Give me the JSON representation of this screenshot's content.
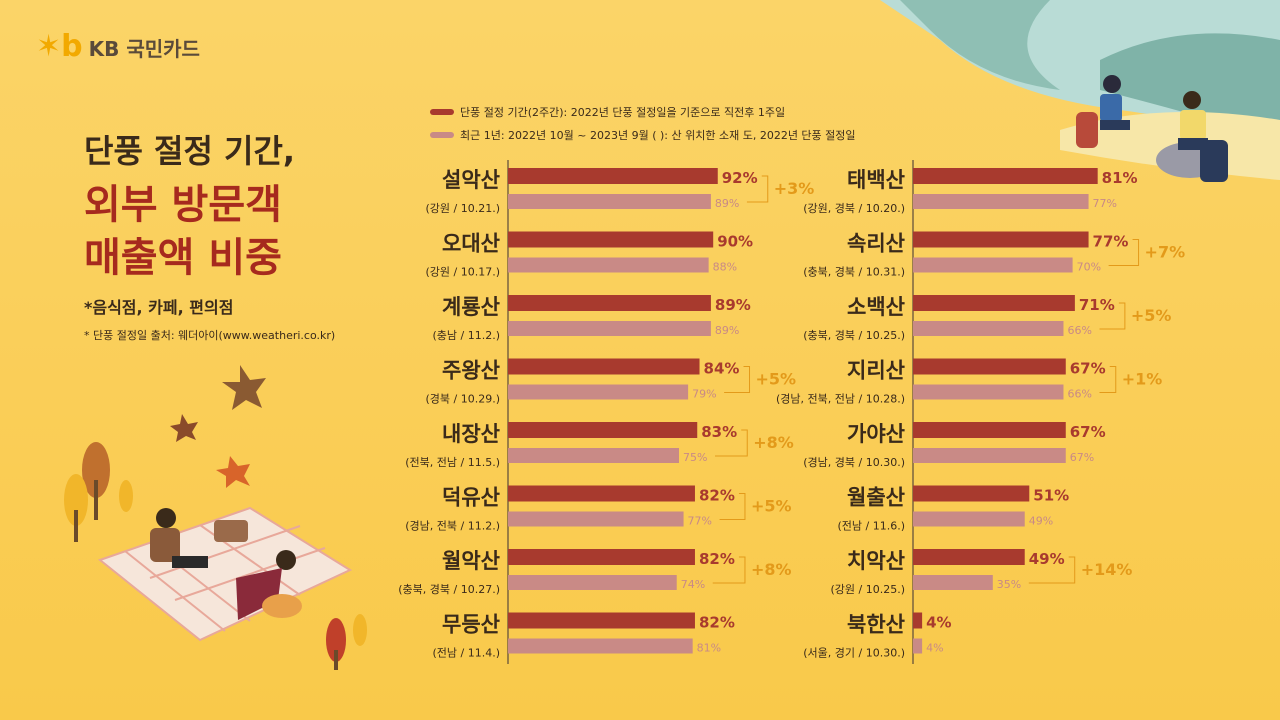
{
  "logo": {
    "mark": "✶b",
    "text": "KB 국민카드"
  },
  "title": {
    "line1": "단풍 절정 기간,",
    "line2": "외부 방문객",
    "line3": "매출액 비중"
  },
  "subtitle": "*음식점, 카페, 편의점",
  "source": "* 단풍 절정일 출처: 웨더아이(www.weatheri.co.kr)",
  "colors": {
    "peak": "#a83a2e",
    "recent": "#c98a86",
    "diff": "#e39a1a",
    "title_accent": "#a62a1e"
  },
  "chart_data": {
    "type": "bar",
    "legend": [
      {
        "label": "단풍 절정 기간(2주간): 2022년 단풍 절정일을 기준으로 직전후 1주일",
        "color": "#a83a2e"
      },
      {
        "label": "최근 1년: 2022년 10월 ~ 2023년 9월    (    ): 산 위치한 소재 도, 2022년 단풍 절정일",
        "color": "#c98a86"
      }
    ],
    "xlim": [
      0,
      100
    ],
    "columns": [
      [
        {
          "name": "설악산",
          "sub": "(강원 / 10.21.)",
          "peak": 92,
          "recent": 89,
          "diff": "+3%"
        },
        {
          "name": "오대산",
          "sub": "(강원 / 10.17.)",
          "peak": 90,
          "recent": 88,
          "diff": ""
        },
        {
          "name": "계룡산",
          "sub": "(충남 / 11.2.)",
          "peak": 89,
          "recent": 89,
          "diff": ""
        },
        {
          "name": "주왕산",
          "sub": "(경북 / 10.29.)",
          "peak": 84,
          "recent": 79,
          "diff": "+5%"
        },
        {
          "name": "내장산",
          "sub": "(전북, 전남 / 11.5.)",
          "peak": 83,
          "recent": 75,
          "diff": "+8%"
        },
        {
          "name": "덕유산",
          "sub": "(경남, 전북 / 11.2.)",
          "peak": 82,
          "recent": 77,
          "diff": "+5%"
        },
        {
          "name": "월악산",
          "sub": "(충북, 경북 / 10.27.)",
          "peak": 82,
          "recent": 74,
          "diff": "+8%"
        },
        {
          "name": "무등산",
          "sub": "(전남 / 11.4.)",
          "peak": 82,
          "recent": 81,
          "diff": ""
        }
      ],
      [
        {
          "name": "태백산",
          "sub": "(강원, 경북 / 10.20.)",
          "peak": 81,
          "recent": 77,
          "diff": ""
        },
        {
          "name": "속리산",
          "sub": "(충북, 경북 / 10.31.)",
          "peak": 77,
          "recent": 70,
          "diff": "+7%"
        },
        {
          "name": "소백산",
          "sub": "(충북, 경북 / 10.25.)",
          "peak": 71,
          "recent": 66,
          "diff": "+5%"
        },
        {
          "name": "지리산",
          "sub": "(경남, 전북, 전남 / 10.28.)",
          "peak": 67,
          "recent": 66,
          "diff": "+1%"
        },
        {
          "name": "가야산",
          "sub": "(경남, 경북 / 10.30.)",
          "peak": 67,
          "recent": 67,
          "diff": ""
        },
        {
          "name": "월출산",
          "sub": "(전남 / 11.6.)",
          "peak": 51,
          "recent": 49,
          "diff": ""
        },
        {
          "name": "치악산",
          "sub": "(강원 / 10.25.)",
          "peak": 49,
          "recent": 35,
          "diff": "+14%"
        },
        {
          "name": "북한산",
          "sub": "(서울, 경기 / 10.30.)",
          "peak": 4,
          "recent": 4,
          "diff": ""
        }
      ]
    ]
  }
}
